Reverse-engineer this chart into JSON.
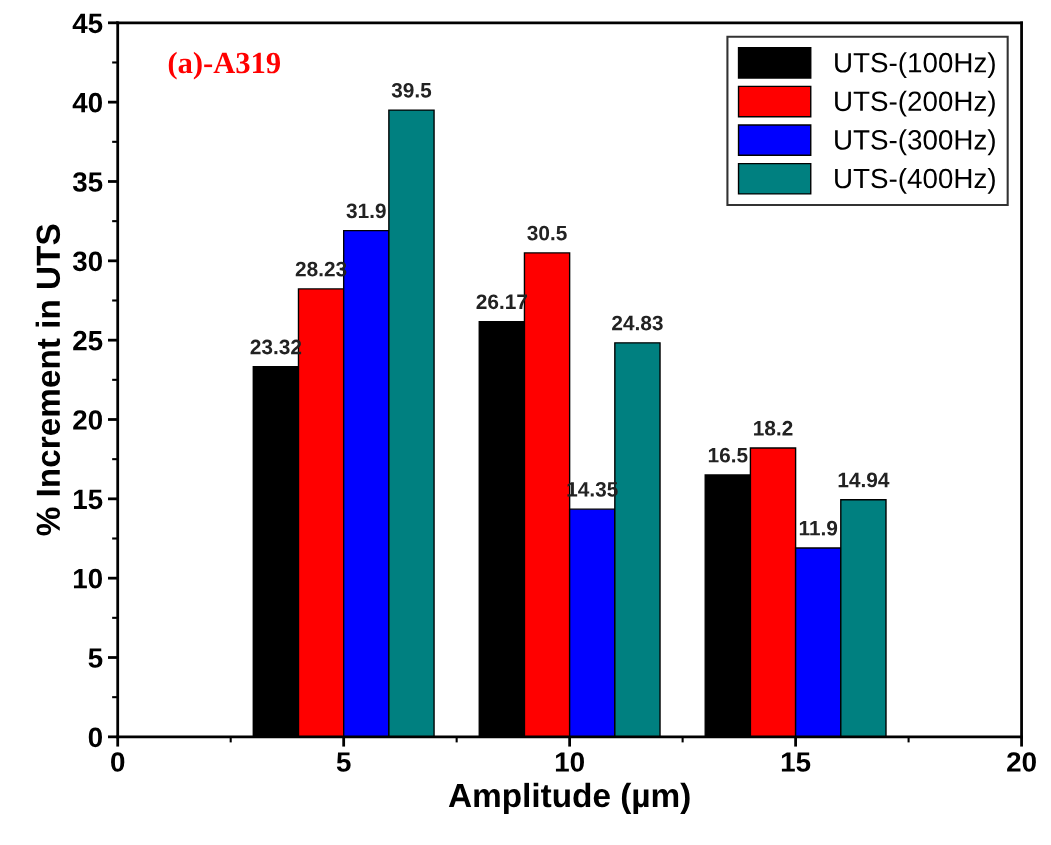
{
  "chart_data": {
    "type": "bar",
    "xlabel": "Amplitude (µm)",
    "ylabel": "% Increment in UTS",
    "annotations": [
      "(a)-A319"
    ],
    "x": [
      5,
      10,
      15
    ],
    "series": [
      {
        "name": "UTS-(100Hz)",
        "color": "#000000",
        "values": [
          23.32,
          26.17,
          16.5
        ]
      },
      {
        "name": "UTS-(200Hz)",
        "color": "#ff0000",
        "values": [
          28.23,
          30.5,
          18.2
        ]
      },
      {
        "name": "UTS-(300Hz)",
        "color": "#0000ff",
        "values": [
          31.9,
          14.35,
          11.9
        ]
      },
      {
        "name": "UTS-(400Hz)",
        "color": "#008080",
        "values": [
          39.5,
          24.83,
          14.94
        ]
      }
    ],
    "xlim": [
      0,
      20
    ],
    "xticks": [
      0,
      5,
      10,
      15,
      20
    ],
    "ylim": [
      0,
      45
    ],
    "yticks": [
      0,
      5,
      10,
      15,
      20,
      25,
      30,
      35,
      40,
      45
    ],
    "data_labels": true,
    "legend": "top right",
    "grid": false
  }
}
